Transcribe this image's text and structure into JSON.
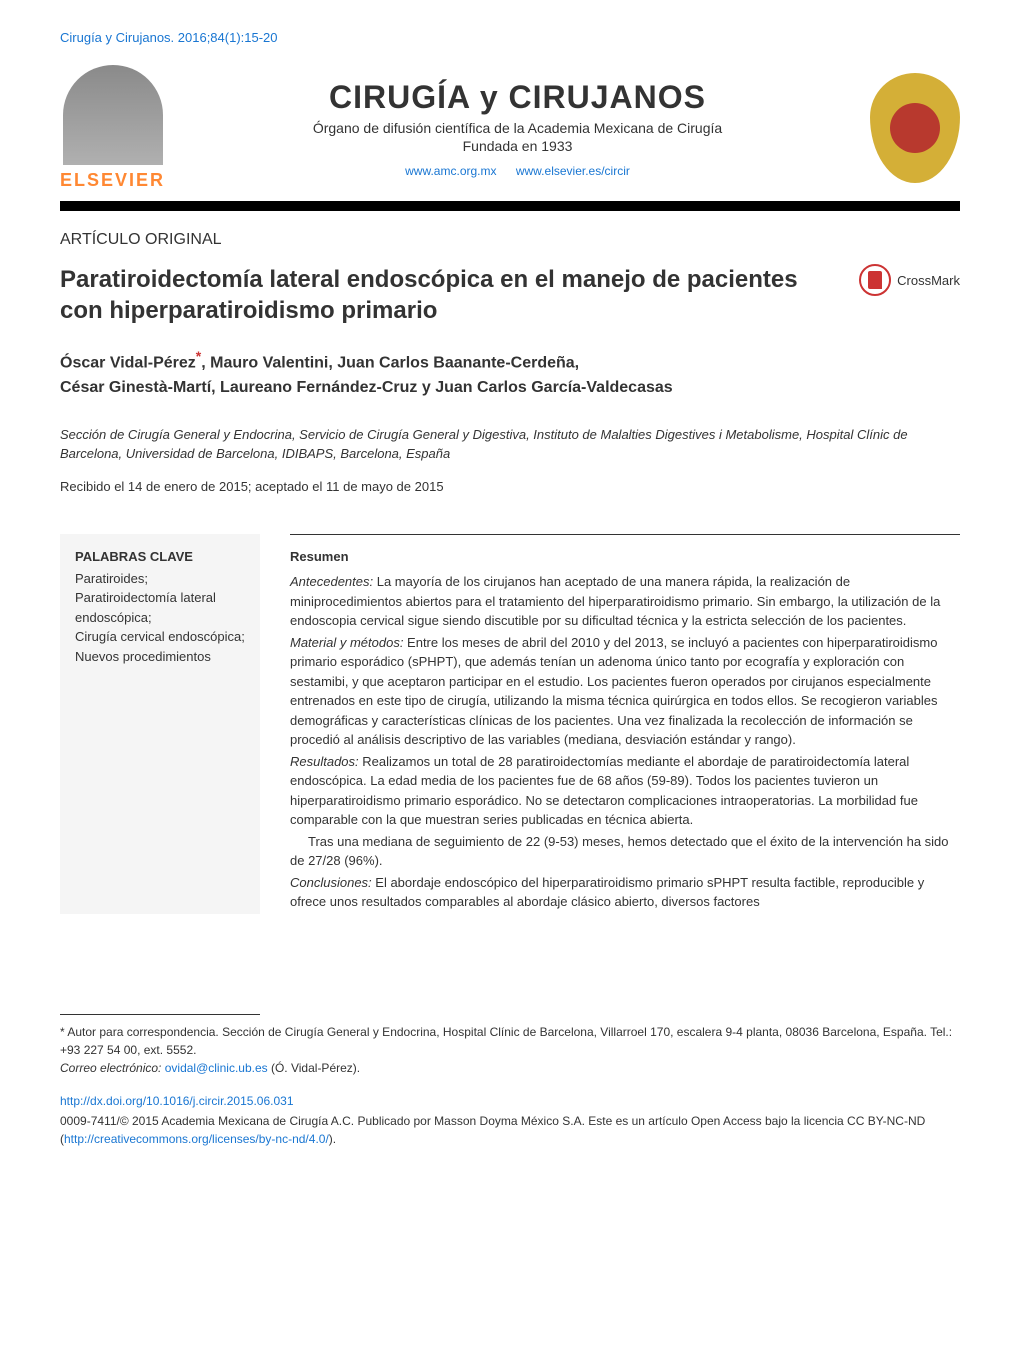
{
  "citation": "Cirugía y Cirujanos. 2016;84(1):15-20",
  "journal": {
    "publisher_name": "ELSEVIER",
    "title": "CIRUGÍA y CIRUJANOS",
    "subtitle": "Órgano de difusión científica de la Academia Mexicana de Cirugía",
    "founded": "Fundada en 1933",
    "link1": "www.amc.org.mx",
    "link2": "www.elsevier.es/circir"
  },
  "article": {
    "type": "ARTÍCULO ORIGINAL",
    "title": "Paratiroidectomía lateral endoscópica en el manejo de pacientes con hiperparatiroidismo primario",
    "crossmark_label": "CrossMark",
    "authors_line1": "Óscar Vidal-Pérez",
    "authors_line1_rest": ", Mauro Valentini, Juan Carlos Baanante-Cerdeña,",
    "authors_line2": "César Ginestà-Martí, Laureano Fernández-Cruz y Juan Carlos García-Valdecasas",
    "asterisk": "*",
    "affiliation": "Sección de Cirugía General y Endocrina, Servicio de Cirugía General y Digestiva, Instituto de Malalties Digestives i Metabolisme, Hospital Clínic de Barcelona, Universidad de Barcelona, IDIBAPS, Barcelona, España",
    "dates": "Recibido el 14 de enero de 2015; aceptado el 11 de mayo de 2015"
  },
  "keywords": {
    "heading": "PALABRAS CLAVE",
    "list": "Paratiroides;\nParatiroidectomía lateral endoscópica;\nCirugía cervical endoscópica;\nNuevos procedimientos"
  },
  "abstract": {
    "heading": "Resumen",
    "antecedentes_label": "Antecedentes:",
    "antecedentes": " La mayoría de los cirujanos han aceptado de una manera rápida, la realización de miniprocedimientos abiertos para el tratamiento del hiperparatiroidismo primario. Sin embargo, la utilización de la endoscopia cervical sigue siendo discutible por su dificultad técnica y la estricta selección de los pacientes.",
    "material_label": "Material y métodos:",
    "material": " Entre los meses de abril del 2010 y del 2013, se incluyó a pacientes con hiperparatiroidismo primario esporádico (sPHPT), que además tenían un adenoma único tanto por ecografía y exploración con sestamibi, y que aceptaron participar en el estudio. Los pacientes fueron operados por cirujanos especialmente entrenados en este tipo de cirugía, utilizando la misma técnica quirúrgica en todos ellos. Se recogieron variables demográficas y características clínicas de los pacientes. Una vez finalizada la recolección de información se procedió al análisis descriptivo de las variables (mediana, desviación estándar y rango).",
    "resultados_label": "Resultados:",
    "resultados": " Realizamos un total de 28 paratiroidectomías mediante el abordaje de paratiroidectomía lateral endoscópica. La edad media de los pacientes fue de 68 años (59-89). Todos los pacientes tuvieron un hiperparatiroidismo primario esporádico. No se detectaron complicaciones intraoperatorias. La morbilidad fue comparable con la que muestran series publicadas en técnica abierta.",
    "followup": "Tras una mediana de seguimiento de 22 (9-53) meses, hemos detectado que el éxito de la intervención ha sido de 27/28 (96%).",
    "conclusiones_label": "Conclusiones:",
    "conclusiones": " El abordaje endoscópico del hiperparatiroidismo primario sPHPT resulta factible, reproducible y ofrece unos resultados comparables al abordaje clásico abierto, diversos factores"
  },
  "footer": {
    "correspondence": "* Autor para correspondencia. Sección de Cirugía General y Endocrina, Hospital Clínic de Barcelona, Villarroel 170, escalera 9-4 planta, 08036 Barcelona, España. Tel.: +93 227 54 00, ext. 5552.",
    "email_label": "Correo electrónico:",
    "email": "ovidal@clinic.ub.es",
    "email_author": " (Ó. Vidal-Pérez).",
    "doi": "http://dx.doi.org/10.1016/j.circir.2015.06.031",
    "copyright": "0009-7411/© 2015 Academia Mexicana de Cirugía A.C. Publicado por Masson Doyma México S.A. Este es un artículo Open Access bajo la licencia CC BY-NC-ND (",
    "license_url": "http://creativecommons.org/licenses/by-nc-nd/4.0/",
    "copyright_end": ")."
  },
  "colors": {
    "link_color": "#1976d2",
    "accent_red": "#cc3333",
    "publisher_orange": "#ff8833",
    "gold": "#d4af37",
    "background": "#ffffff",
    "text": "#333333",
    "keywords_bg": "#f5f5f5"
  },
  "typography": {
    "body_font": "Arial, Helvetica, sans-serif",
    "citation_size": 13,
    "journal_title_size": 32,
    "article_title_size": 24,
    "authors_size": 16,
    "body_size": 13,
    "footer_size": 12
  }
}
